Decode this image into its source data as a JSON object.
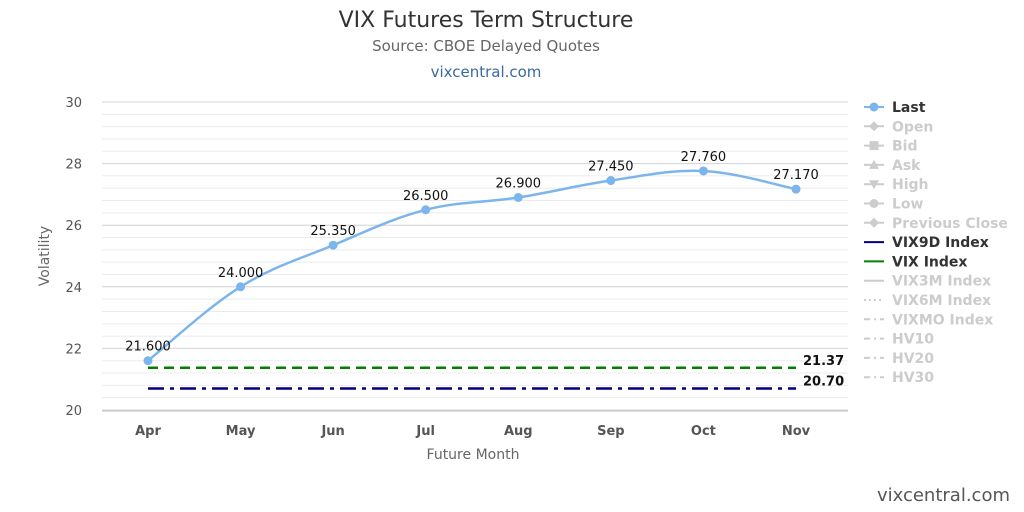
{
  "header": {
    "title": "VIX Futures Term Structure",
    "subtitle": "Source: CBOE Delayed Quotes",
    "link": "vixcentral.com"
  },
  "credit": "vixcentral.com",
  "chart_data": {
    "type": "line",
    "title": "VIX Futures Term Structure",
    "subtitle": "Source: CBOE Delayed Quotes",
    "xlabel": "Future Month",
    "ylabel": "Volatility",
    "categories": [
      "Apr",
      "May",
      "Jun",
      "Jul",
      "Aug",
      "Sep",
      "Oct",
      "Nov"
    ],
    "ylim": [
      20,
      30
    ],
    "yticks": [
      20,
      22,
      24,
      26,
      28,
      30
    ],
    "grid": true,
    "legend_position": "right",
    "series": [
      {
        "name": "Last",
        "values": [
          21.6,
          24.0,
          25.35,
          26.5,
          26.9,
          27.45,
          27.76,
          27.17
        ],
        "labels": [
          "21.600",
          "24.000",
          "25.350",
          "26.500",
          "26.900",
          "27.450",
          "27.760",
          "27.170"
        ],
        "color": "#7cb5ec",
        "marker": "circle",
        "smooth": true
      },
      {
        "name": "VIX9D Index",
        "value": 20.7,
        "label": "20.70",
        "color": "#000080",
        "dash": "dash-dot"
      },
      {
        "name": "VIX Index",
        "value": 21.37,
        "label": "21.37",
        "color": "#008000",
        "dash": "dash"
      }
    ],
    "legend": [
      {
        "name": "Last",
        "active": true,
        "symbol": "circle-line",
        "color": "#7cb5ec"
      },
      {
        "name": "Open",
        "active": false,
        "symbol": "diamond-line"
      },
      {
        "name": "Bid",
        "active": false,
        "symbol": "square-line"
      },
      {
        "name": "Ask",
        "active": false,
        "symbol": "triangle-line"
      },
      {
        "name": "High",
        "active": false,
        "symbol": "triangle-down-line"
      },
      {
        "name": "Low",
        "active": false,
        "symbol": "circle-line"
      },
      {
        "name": "Previous Close",
        "active": false,
        "symbol": "diamond-line"
      },
      {
        "name": "VIX9D Index",
        "active": true,
        "symbol": "solid",
        "color": "#000080"
      },
      {
        "name": "VIX Index",
        "active": true,
        "symbol": "solid",
        "color": "#008000"
      },
      {
        "name": "VIX3M Index",
        "active": false,
        "symbol": "solid"
      },
      {
        "name": "VIX6M Index",
        "active": false,
        "symbol": "dotted"
      },
      {
        "name": "VIXMO Index",
        "active": false,
        "symbol": "dash-dot"
      },
      {
        "name": "HV10",
        "active": false,
        "symbol": "dash-dot"
      },
      {
        "name": "HV20",
        "active": false,
        "symbol": "dash-dot"
      },
      {
        "name": "HV30",
        "active": false,
        "symbol": "dash-dot"
      }
    ]
  }
}
